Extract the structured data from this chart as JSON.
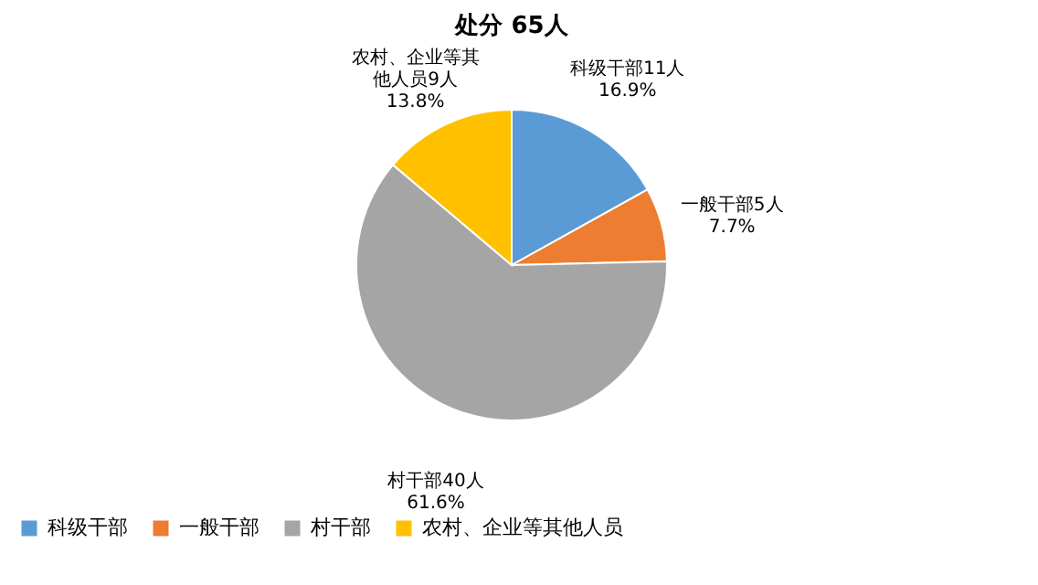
{
  "chart_data": {
    "type": "pie",
    "title": "处分  65人",
    "categories": [
      "科级干部",
      "一般干部",
      "村干部",
      "农村、企业等其他人员"
    ],
    "values": [
      11,
      5,
      40,
      9
    ],
    "colors": [
      "#5b9bd5",
      "#ed7d31",
      "#a5a5a5",
      "#ffc000"
    ],
    "value_labels": [
      "科级干部11人\n16.9%",
      "一般干部5人\n7.7%",
      "村干部40人\n61.6%",
      "农村、企业等其他人员9人\n13.8%"
    ],
    "legend": "bottom"
  }
}
